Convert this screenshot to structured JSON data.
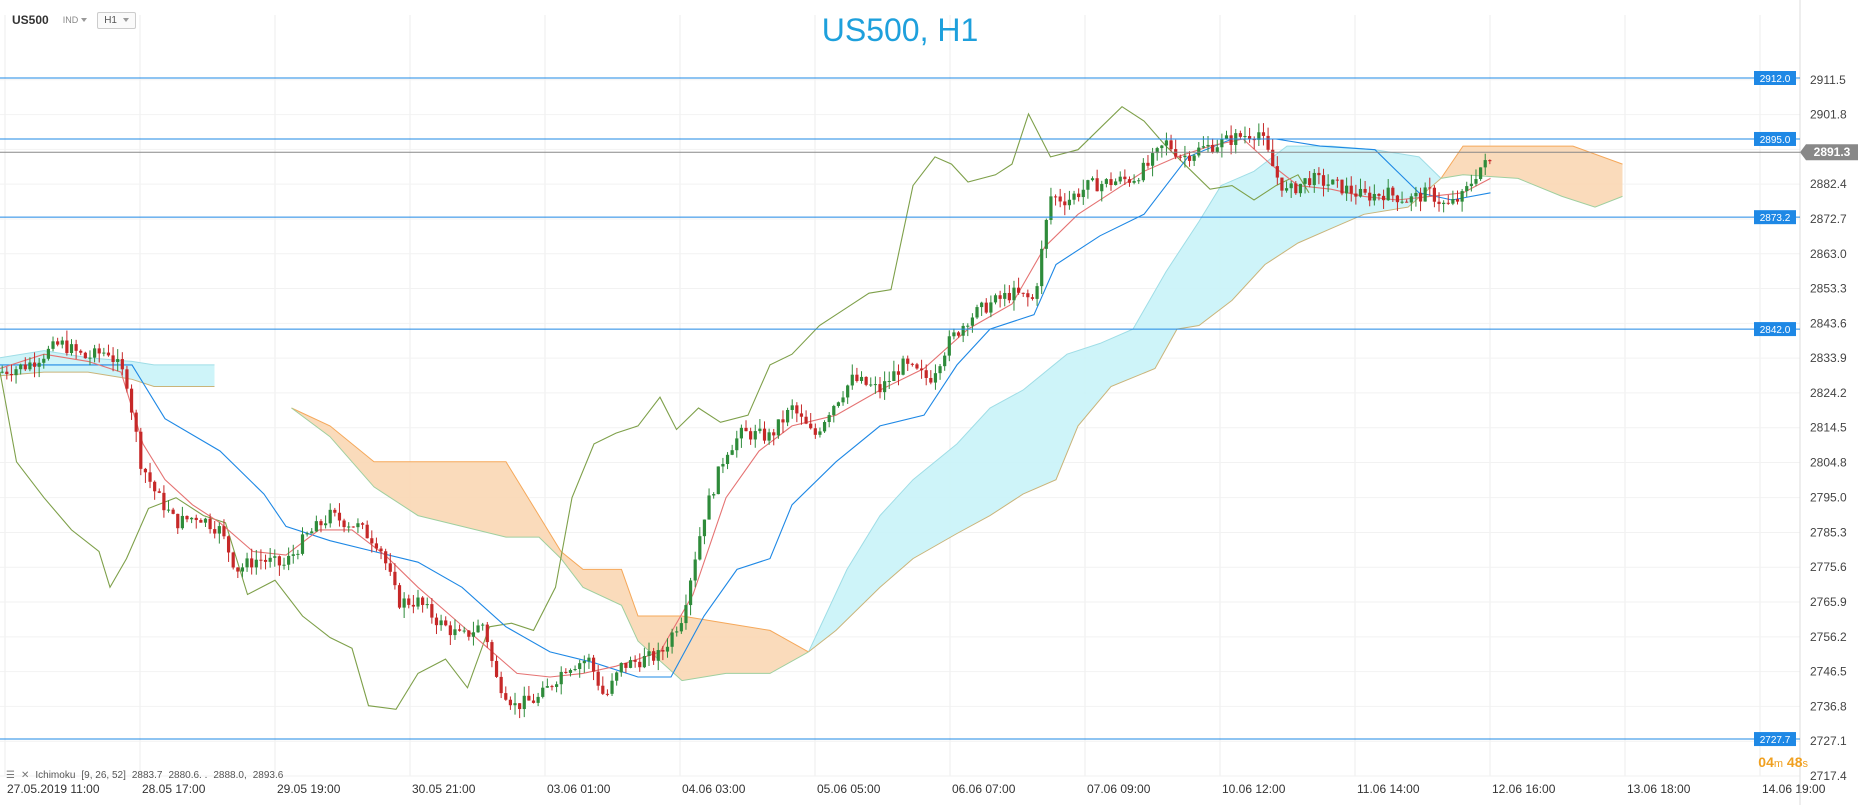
{
  "header": {
    "symbol": "US500",
    "badge": "IND",
    "timeframe": "H1",
    "chart_title": "US500, H1"
  },
  "indicator": {
    "label": "Ichimoku",
    "params": "[9, 26, 52]",
    "values": [
      "2883.7",
      "2880.6. .",
      "2888.0,",
      "2893.6"
    ]
  },
  "timer": {
    "minutes": "04",
    "seconds": "48"
  },
  "colors": {
    "bull": "#2e8b3a",
    "bear": "#c62828",
    "tenkan": "#e57373",
    "kijun": "#1e88e5",
    "chikou": "#7ea04a",
    "cloud_bull": "#c9f3f8",
    "cloud_bear": "#fad7b4",
    "levels": "#1e88e5",
    "price_tag": "#888888"
  },
  "chart_data": {
    "type": "candlestick",
    "title": "US500, H1",
    "ylim": [
      2717.4,
      2921.2
    ],
    "y_ticks": [
      2911.5,
      2901.8,
      2892.1,
      2882.4,
      2872.7,
      2863.0,
      2853.3,
      2843.6,
      2833.9,
      2824.2,
      2814.5,
      2804.8,
      2795.0,
      2785.3,
      2775.6,
      2765.9,
      2756.2,
      2746.5,
      2736.8,
      2727.1,
      2717.4
    ],
    "y_tick_labels": [
      "2911.5",
      "2901.8",
      "",
      "2882.4",
      "2872.7",
      "2863.0",
      "2853.3",
      "2843.6",
      "2833.9",
      "2824.2",
      "2814.5",
      "2804.8",
      "2795.0",
      "2785.3",
      "2775.6",
      "2765.9",
      "2756.2",
      "2746.5",
      "2736.8",
      "2727.1",
      "2717.4"
    ],
    "x_labels": [
      "27.05.2019  11:00",
      "28.05  17:00",
      "29.05  19:00",
      "30.05  21:00",
      "03.06  01:00",
      "04.06  03:00",
      "05.06  05:00",
      "06.06  07:00",
      "07.06  09:00",
      "10.06  12:00",
      "11.06  14:00",
      "12.06  16:00",
      "13.06  18:00",
      "14.06  19:00"
    ],
    "levels": [
      {
        "value": 2912.0,
        "label": "2912.0"
      },
      {
        "value": 2895.0,
        "label": "2895.0"
      },
      {
        "value": 2873.2,
        "label": "2873.2"
      },
      {
        "value": 2842.0,
        "label": "2842.0"
      },
      {
        "value": 2727.7,
        "label": "2727.7"
      }
    ],
    "current_price": {
      "value": 2891.3,
      "label": "2891.3"
    },
    "close_path": [
      [
        0,
        2830
      ],
      [
        25,
        2832
      ],
      [
        55,
        2838
      ],
      [
        78,
        2834
      ],
      [
        98,
        2836
      ],
      [
        115,
        2828
      ],
      [
        128,
        2805
      ],
      [
        142,
        2796
      ],
      [
        160,
        2788
      ],
      [
        180,
        2790
      ],
      [
        200,
        2786
      ],
      [
        215,
        2775
      ],
      [
        235,
        2778
      ],
      [
        258,
        2776
      ],
      [
        278,
        2784
      ],
      [
        300,
        2790
      ],
      [
        325,
        2787
      ],
      [
        345,
        2782
      ],
      [
        362,
        2766
      ],
      [
        380,
        2766
      ],
      [
        400,
        2760
      ],
      [
        420,
        2756
      ],
      [
        440,
        2760
      ],
      [
        450,
        2745
      ],
      [
        468,
        2737
      ],
      [
        490,
        2739
      ],
      [
        515,
        2748
      ],
      [
        535,
        2750
      ],
      [
        550,
        2739
      ],
      [
        565,
        2748
      ],
      [
        585,
        2750
      ],
      [
        600,
        2751
      ],
      [
        620,
        2762
      ],
      [
        640,
        2790
      ],
      [
        660,
        2808
      ],
      [
        675,
        2813
      ],
      [
        700,
        2812
      ],
      [
        720,
        2820
      ],
      [
        740,
        2812
      ],
      [
        755,
        2820
      ],
      [
        775,
        2828
      ],
      [
        800,
        2825
      ],
      [
        820,
        2832
      ],
      [
        845,
        2828
      ],
      [
        862,
        2838
      ],
      [
        880,
        2845
      ],
      [
        900,
        2849
      ],
      [
        920,
        2852
      ],
      [
        940,
        2850
      ],
      [
        955,
        2879
      ],
      [
        970,
        2878
      ],
      [
        990,
        2882
      ],
      [
        1010,
        2883
      ],
      [
        1030,
        2884
      ],
      [
        1045,
        2888
      ],
      [
        1060,
        2894
      ],
      [
        1075,
        2890
      ],
      [
        1090,
        2892
      ],
      [
        1110,
        2894
      ],
      [
        1130,
        2896
      ],
      [
        1145,
        2897
      ],
      [
        1160,
        2885
      ],
      [
        1170,
        2880
      ],
      [
        1190,
        2884
      ],
      [
        1215,
        2882
      ],
      [
        1240,
        2879
      ],
      [
        1260,
        2880
      ],
      [
        1280,
        2878
      ],
      [
        1300,
        2880
      ],
      [
        1315,
        2876
      ],
      [
        1330,
        2879
      ],
      [
        1345,
        2887
      ],
      [
        1358,
        2889
      ]
    ],
    "tenkan": [
      [
        0,
        2831
      ],
      [
        40,
        2835
      ],
      [
        80,
        2833
      ],
      [
        110,
        2830
      ],
      [
        130,
        2810
      ],
      [
        150,
        2800
      ],
      [
        175,
        2793
      ],
      [
        200,
        2788
      ],
      [
        230,
        2780
      ],
      [
        260,
        2779
      ],
      [
        290,
        2786
      ],
      [
        320,
        2786
      ],
      [
        350,
        2779
      ],
      [
        380,
        2770
      ],
      [
        410,
        2762
      ],
      [
        440,
        2754
      ],
      [
        470,
        2746
      ],
      [
        500,
        2745
      ],
      [
        530,
        2746
      ],
      [
        560,
        2748
      ],
      [
        600,
        2752
      ],
      [
        630,
        2768
      ],
      [
        660,
        2795
      ],
      [
        690,
        2808
      ],
      [
        720,
        2815
      ],
      [
        760,
        2818
      ],
      [
        800,
        2825
      ],
      [
        840,
        2831
      ],
      [
        880,
        2842
      ],
      [
        920,
        2849
      ],
      [
        950,
        2865
      ],
      [
        980,
        2874
      ],
      [
        1010,
        2880
      ],
      [
        1040,
        2886
      ],
      [
        1070,
        2890
      ],
      [
        1100,
        2893
      ],
      [
        1130,
        2895
      ],
      [
        1155,
        2888
      ],
      [
        1180,
        2882
      ],
      [
        1210,
        2881
      ],
      [
        1240,
        2879
      ],
      [
        1270,
        2878
      ],
      [
        1300,
        2879
      ],
      [
        1330,
        2880
      ],
      [
        1355,
        2884
      ]
    ],
    "kijun": [
      [
        0,
        2832
      ],
      [
        80,
        2832
      ],
      [
        120,
        2832
      ],
      [
        150,
        2817
      ],
      [
        200,
        2808
      ],
      [
        240,
        2796
      ],
      [
        260,
        2787
      ],
      [
        300,
        2783
      ],
      [
        340,
        2780
      ],
      [
        380,
        2777
      ],
      [
        420,
        2770
      ],
      [
        460,
        2759
      ],
      [
        500,
        2752
      ],
      [
        540,
        2749
      ],
      [
        580,
        2745
      ],
      [
        610,
        2745
      ],
      [
        640,
        2762
      ],
      [
        670,
        2775
      ],
      [
        700,
        2778
      ],
      [
        720,
        2793
      ],
      [
        760,
        2805
      ],
      [
        800,
        2815
      ],
      [
        840,
        2818
      ],
      [
        870,
        2832
      ],
      [
        900,
        2842
      ],
      [
        940,
        2846
      ],
      [
        960,
        2860
      ],
      [
        1000,
        2868
      ],
      [
        1040,
        2874
      ],
      [
        1060,
        2882
      ],
      [
        1080,
        2890
      ],
      [
        1120,
        2895
      ],
      [
        1160,
        2895
      ],
      [
        1200,
        2893
      ],
      [
        1250,
        2892
      ],
      [
        1290,
        2880
      ],
      [
        1320,
        2878
      ],
      [
        1355,
        2880
      ]
    ],
    "chikou": [
      [
        0,
        2830
      ],
      [
        15,
        2805
      ],
      [
        40,
        2795
      ],
      [
        65,
        2786
      ],
      [
        90,
        2780
      ],
      [
        100,
        2770
      ],
      [
        115,
        2778
      ],
      [
        135,
        2792
      ],
      [
        160,
        2795
      ],
      [
        185,
        2790
      ],
      [
        205,
        2788
      ],
      [
        225,
        2768
      ],
      [
        250,
        2772
      ],
      [
        275,
        2762
      ],
      [
        300,
        2756
      ],
      [
        320,
        2753
      ],
      [
        335,
        2737
      ],
      [
        360,
        2736
      ],
      [
        380,
        2746
      ],
      [
        405,
        2750
      ],
      [
        425,
        2742
      ],
      [
        445,
        2759
      ],
      [
        465,
        2760
      ],
      [
        485,
        2758
      ],
      [
        505,
        2770
      ],
      [
        520,
        2795
      ],
      [
        540,
        2810
      ],
      [
        560,
        2813
      ],
      [
        580,
        2815
      ],
      [
        600,
        2823
      ],
      [
        615,
        2814
      ],
      [
        635,
        2820
      ],
      [
        655,
        2816
      ],
      [
        680,
        2818
      ],
      [
        700,
        2832
      ],
      [
        720,
        2835
      ],
      [
        745,
        2843
      ],
      [
        770,
        2848
      ],
      [
        790,
        2852
      ],
      [
        810,
        2853
      ],
      [
        830,
        2882
      ],
      [
        850,
        2890
      ],
      [
        865,
        2888
      ],
      [
        880,
        2883
      ],
      [
        905,
        2885
      ],
      [
        920,
        2888
      ],
      [
        935,
        2902
      ],
      [
        955,
        2890
      ],
      [
        980,
        2892
      ],
      [
        1000,
        2898
      ],
      [
        1020,
        2904
      ],
      [
        1040,
        2900
      ],
      [
        1060,
        2893
      ],
      [
        1080,
        2887
      ],
      [
        1100,
        2881
      ],
      [
        1120,
        2882
      ],
      [
        1140,
        2878
      ],
      [
        1160,
        2882
      ],
      [
        1180,
        2885
      ],
      [
        1190,
        2880
      ]
    ],
    "cloud_segments": [
      {
        "kind": "bull",
        "top": [
          [
            0,
            2834
          ],
          [
            40,
            2836
          ],
          [
            80,
            2834
          ],
          [
            120,
            2833
          ],
          [
            140,
            2832
          ],
          [
            160,
            2832
          ],
          [
            195,
            2832
          ]
        ],
        "bottom": [
          [
            0,
            2829
          ],
          [
            40,
            2830
          ],
          [
            80,
            2830
          ],
          [
            120,
            2828
          ],
          [
            140,
            2826
          ],
          [
            160,
            2826
          ],
          [
            195,
            2826
          ]
        ]
      },
      {
        "kind": "bear",
        "top": [
          [
            265,
            2820
          ],
          [
            300,
            2815
          ],
          [
            340,
            2805
          ],
          [
            380,
            2805
          ],
          [
            420,
            2805
          ],
          [
            460,
            2805
          ],
          [
            490,
            2790
          ],
          [
            510,
            2780
          ],
          [
            530,
            2775
          ],
          [
            565,
            2775
          ],
          [
            580,
            2762
          ],
          [
            620,
            2762
          ],
          [
            660,
            2760
          ],
          [
            700,
            2758
          ],
          [
            735,
            2752
          ]
        ],
        "bottom": [
          [
            265,
            2820
          ],
          [
            300,
            2812
          ],
          [
            340,
            2798
          ],
          [
            380,
            2790
          ],
          [
            420,
            2787
          ],
          [
            460,
            2784
          ],
          [
            490,
            2784
          ],
          [
            510,
            2778
          ],
          [
            530,
            2770
          ],
          [
            565,
            2765
          ],
          [
            580,
            2755
          ],
          [
            620,
            2744
          ],
          [
            660,
            2746
          ],
          [
            700,
            2746
          ],
          [
            735,
            2752
          ]
        ]
      },
      {
        "kind": "bull",
        "top": [
          [
            735,
            2752
          ],
          [
            770,
            2775
          ],
          [
            800,
            2790
          ],
          [
            830,
            2800
          ],
          [
            870,
            2810
          ],
          [
            900,
            2820
          ],
          [
            930,
            2825
          ],
          [
            970,
            2835
          ],
          [
            1000,
            2838
          ],
          [
            1030,
            2842
          ],
          [
            1060,
            2858
          ],
          [
            1090,
            2872
          ],
          [
            1110,
            2882
          ],
          [
            1140,
            2886
          ],
          [
            1170,
            2893
          ],
          [
            1210,
            2893
          ],
          [
            1250,
            2892
          ],
          [
            1290,
            2890
          ],
          [
            1310,
            2884
          ]
        ],
        "bottom": [
          [
            735,
            2752
          ],
          [
            760,
            2758
          ],
          [
            800,
            2770
          ],
          [
            830,
            2778
          ],
          [
            870,
            2785
          ],
          [
            900,
            2790
          ],
          [
            930,
            2796
          ],
          [
            960,
            2800
          ],
          [
            980,
            2815
          ],
          [
            1010,
            2826
          ],
          [
            1050,
            2831
          ],
          [
            1070,
            2842
          ],
          [
            1090,
            2843
          ],
          [
            1120,
            2850
          ],
          [
            1150,
            2860
          ],
          [
            1180,
            2866
          ],
          [
            1210,
            2870
          ],
          [
            1240,
            2874
          ],
          [
            1280,
            2876
          ],
          [
            1310,
            2884
          ]
        ]
      },
      {
        "kind": "bear",
        "top": [
          [
            1310,
            2884
          ],
          [
            1330,
            2893
          ],
          [
            1380,
            2893
          ],
          [
            1430,
            2893
          ],
          [
            1475,
            2888
          ]
        ],
        "bottom": [
          [
            1310,
            2884
          ],
          [
            1330,
            2885
          ],
          [
            1380,
            2884
          ],
          [
            1420,
            2879
          ],
          [
            1450,
            2876
          ],
          [
            1475,
            2879
          ]
        ]
      }
    ]
  }
}
